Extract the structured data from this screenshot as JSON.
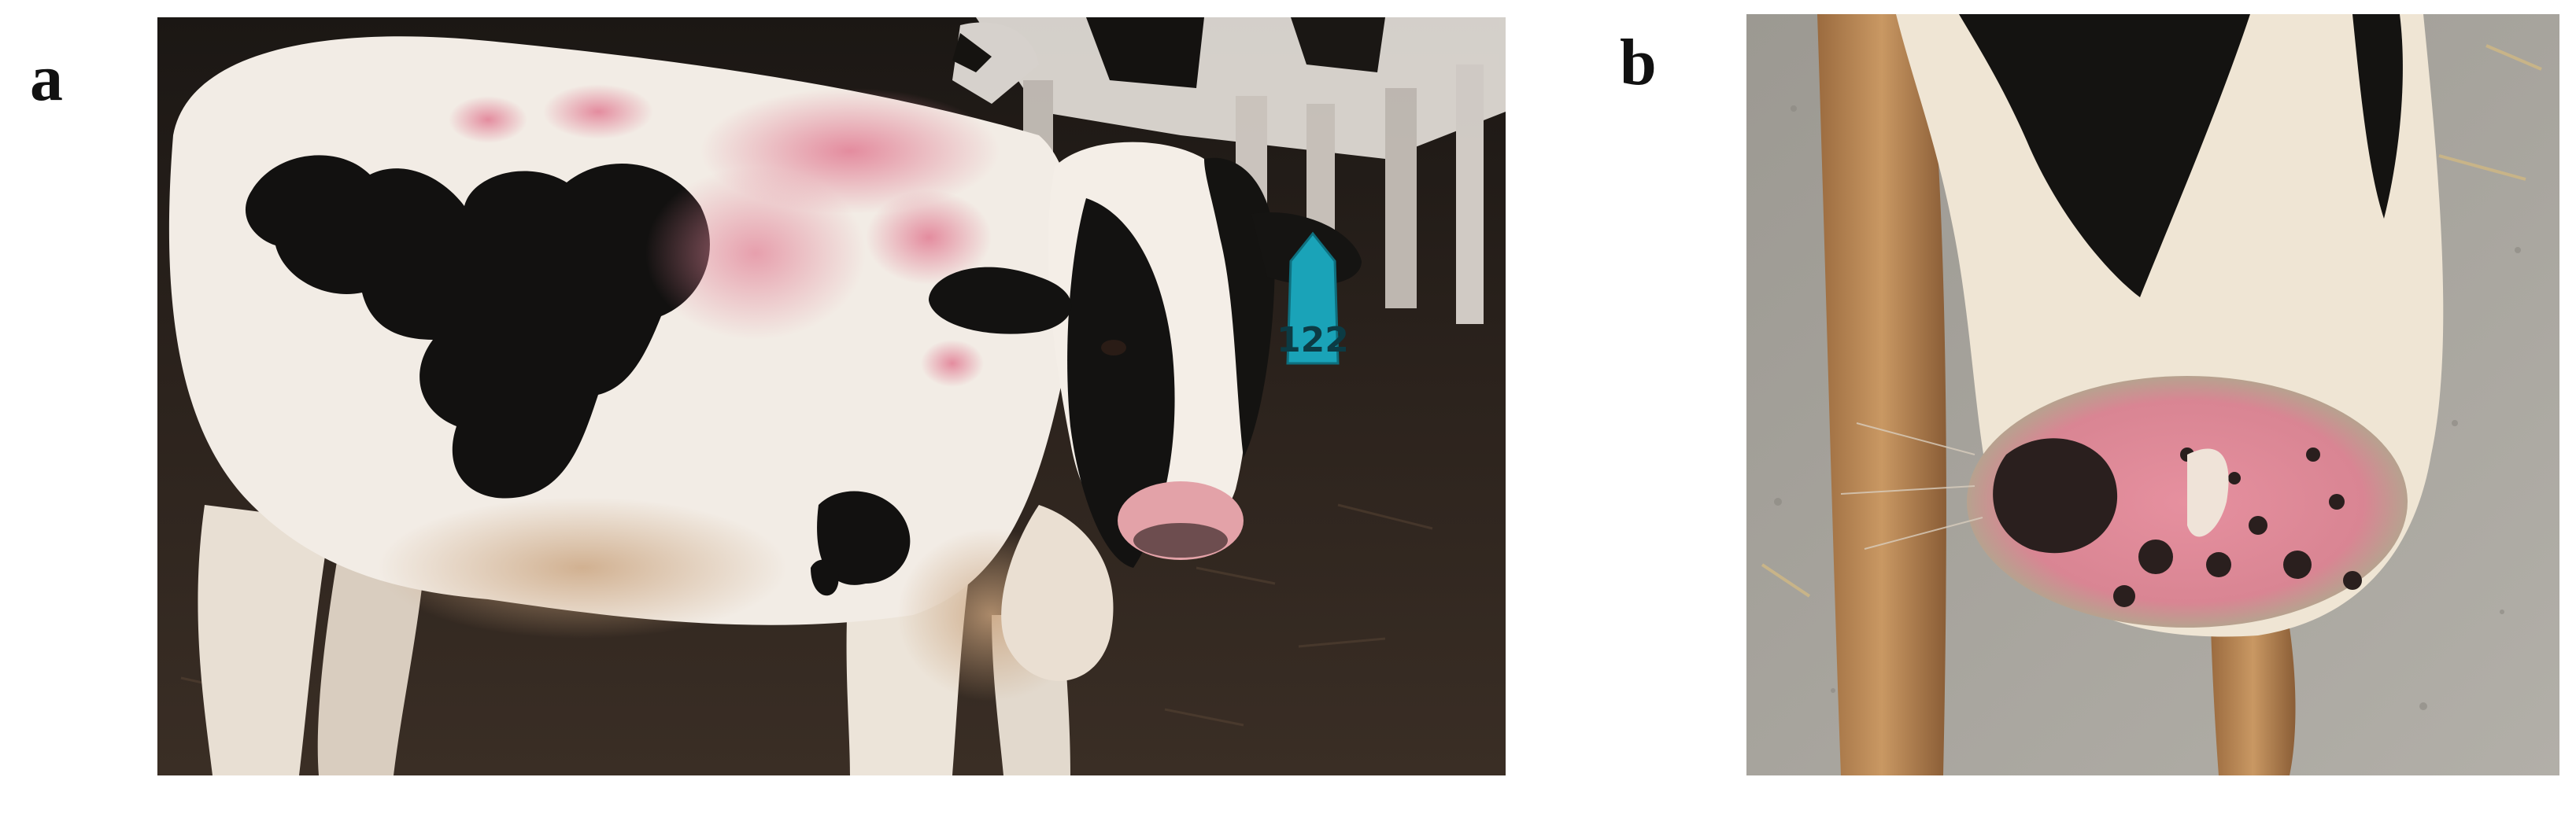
{
  "figure": {
    "panels": [
      {
        "label": "a",
        "ear_tag_number": "122"
      },
      {
        "label": "b"
      }
    ]
  },
  "colors": {
    "background": "#ffffff",
    "barn_floor": "#2a211b",
    "concrete": "#a9a6a0",
    "hide_white": "#efe8e0",
    "hide_black": "#111111",
    "lesion_pink": "#e79aa6",
    "ear_tag": "#1aa3b8"
  }
}
